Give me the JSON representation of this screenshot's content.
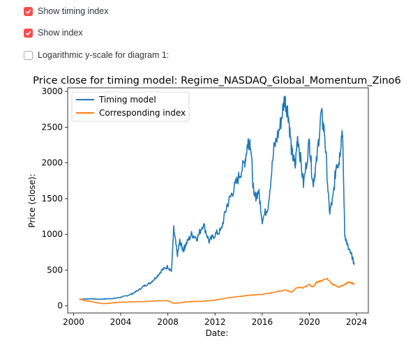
{
  "controls": {
    "show_timing_index": {
      "label": "Show timing index",
      "checked": true
    },
    "show_index": {
      "label": "Show index",
      "checked": true
    },
    "log_scale": {
      "label": "Logarithmic y-scale for diagram 1:",
      "checked": false
    }
  },
  "colors": {
    "accent": "#ff4b4b",
    "series_timing": "#1f77b4",
    "series_index": "#ff7f0e"
  },
  "chart_data": {
    "type": "line",
    "title": "Price close for timing model: Regime_NASDAQ_Global_Momentum_Zino6",
    "xlabel": "Date:",
    "ylabel": "Price (close):",
    "xlim": [
      1999.5,
      2025.0
    ],
    "ylim": [
      -100,
      3050
    ],
    "xticks": [
      2000,
      2004,
      2008,
      2012,
      2016,
      2020,
      2024
    ],
    "yticks": [
      0,
      500,
      1000,
      1500,
      2000,
      2500,
      3000
    ],
    "legend": "top-left",
    "grid": false,
    "series": [
      {
        "name": "Timing model",
        "x": [
          2000.5,
          2001.0,
          2001.5,
          2002.0,
          2002.5,
          2003.0,
          2003.5,
          2004.0,
          2004.5,
          2005.0,
          2005.5,
          2006.0,
          2006.5,
          2007.0,
          2007.5,
          2008.0,
          2008.3,
          2008.5,
          2008.8,
          2009.0,
          2009.3,
          2009.5,
          2010.0,
          2010.5,
          2011.0,
          2011.5,
          2012.0,
          2012.5,
          2013.0,
          2013.5,
          2014.0,
          2014.5,
          2014.8,
          2015.0,
          2015.3,
          2015.7,
          2016.0,
          2016.5,
          2017.0,
          2017.5,
          2017.9,
          2018.2,
          2018.5,
          2018.8,
          2019.0,
          2019.5,
          2020.0,
          2020.3,
          2020.6,
          2021.0,
          2021.3,
          2021.7,
          2022.0,
          2022.3,
          2022.5,
          2022.8,
          2023.0,
          2023.3,
          2023.6,
          2023.8
        ],
        "y": [
          90,
          95,
          100,
          92,
          95,
          100,
          105,
          120,
          140,
          170,
          220,
          280,
          320,
          400,
          500,
          550,
          480,
          1080,
          700,
          900,
          780,
          850,
          1000,
          950,
          1150,
          900,
          1000,
          1050,
          1400,
          1600,
          1800,
          2000,
          2300,
          2300,
          1500,
          1600,
          1200,
          1400,
          2200,
          2500,
          2900,
          2700,
          2150,
          1950,
          2400,
          1700,
          2300,
          1700,
          2000,
          2700,
          2400,
          1300,
          1500,
          2000,
          2000,
          2500,
          1000,
          800,
          700,
          580
        ]
      },
      {
        "name": "Corresponding index",
        "x": [
          2000.5,
          2001.0,
          2001.5,
          2002.0,
          2002.5,
          2003.0,
          2003.5,
          2004.0,
          2005.0,
          2006.0,
          2007.0,
          2008.0,
          2008.5,
          2009.0,
          2009.5,
          2010.0,
          2011.0,
          2012.0,
          2013.0,
          2014.0,
          2015.0,
          2016.0,
          2017.0,
          2018.0,
          2018.5,
          2019.0,
          2019.5,
          2020.0,
          2020.3,
          2020.6,
          2021.0,
          2021.5,
          2022.0,
          2022.5,
          2023.0,
          2023.3,
          2023.6,
          2023.8
        ],
        "y": [
          100,
          70,
          60,
          45,
          30,
          35,
          45,
          50,
          55,
          60,
          70,
          70,
          35,
          40,
          55,
          60,
          65,
          80,
          110,
          130,
          150,
          160,
          190,
          220,
          190,
          260,
          250,
          300,
          260,
          330,
          350,
          380,
          300,
          260,
          300,
          330,
          320,
          300
        ]
      }
    ]
  }
}
